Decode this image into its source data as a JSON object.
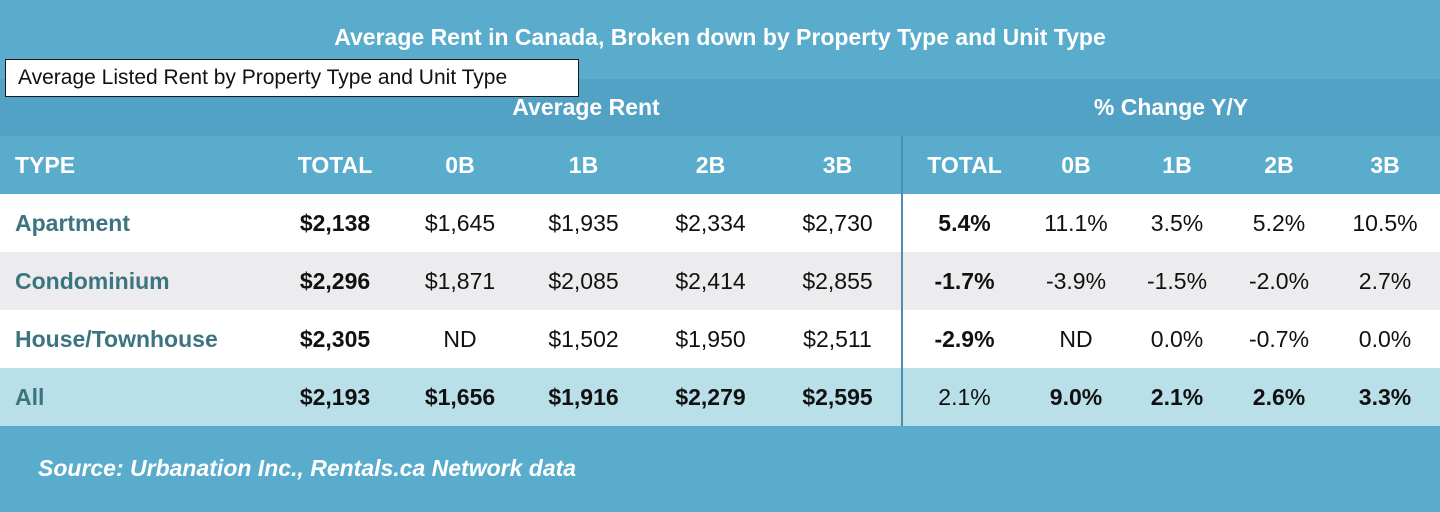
{
  "title": "Average Rent in Canada, Broken down by Property Type and Unit Type",
  "tooltip": "Average Listed Rent by Property Type and Unit Type",
  "groups": {
    "rent": "Average Rent",
    "change": "% Change Y/Y"
  },
  "columns": [
    "TYPE",
    "TOTAL",
    "0B",
    "1B",
    "2B",
    "3B",
    "TOTAL",
    "0B",
    "1B",
    "2B",
    "3B"
  ],
  "rows": [
    {
      "type": "Apartment",
      "cells": [
        "$2,138",
        "$1,645",
        "$1,935",
        "$2,334",
        "$2,730",
        "5.4%",
        "11.1%",
        "3.5%",
        "5.2%",
        "10.5%"
      ]
    },
    {
      "type": "Condominium",
      "cells": [
        "$2,296",
        "$1,871",
        "$2,085",
        "$2,414",
        "$2,855",
        "-1.7%",
        "-3.9%",
        "-1.5%",
        "-2.0%",
        "2.7%"
      ]
    },
    {
      "type": "House/Townhouse",
      "cells": [
        "$2,305",
        "ND",
        "$1,502",
        "$1,950",
        "$2,511",
        "-2.9%",
        "ND",
        "0.0%",
        "-0.7%",
        "0.0%"
      ]
    },
    {
      "type": "All",
      "cells": [
        "$2,193",
        "$1,656",
        "$1,916",
        "$2,279",
        "$2,595",
        "2.1%",
        "9.0%",
        "2.1%",
        "2.6%",
        "3.3%"
      ]
    }
  ],
  "source": "Source: Urbanation Inc., Rentals.ca Network data",
  "colors": {
    "background": "#5aaccc",
    "group_header": "#52a2c6",
    "row_alt": "#ececef",
    "row_total": "#b9e0e8",
    "type_text": "#3c7480"
  }
}
